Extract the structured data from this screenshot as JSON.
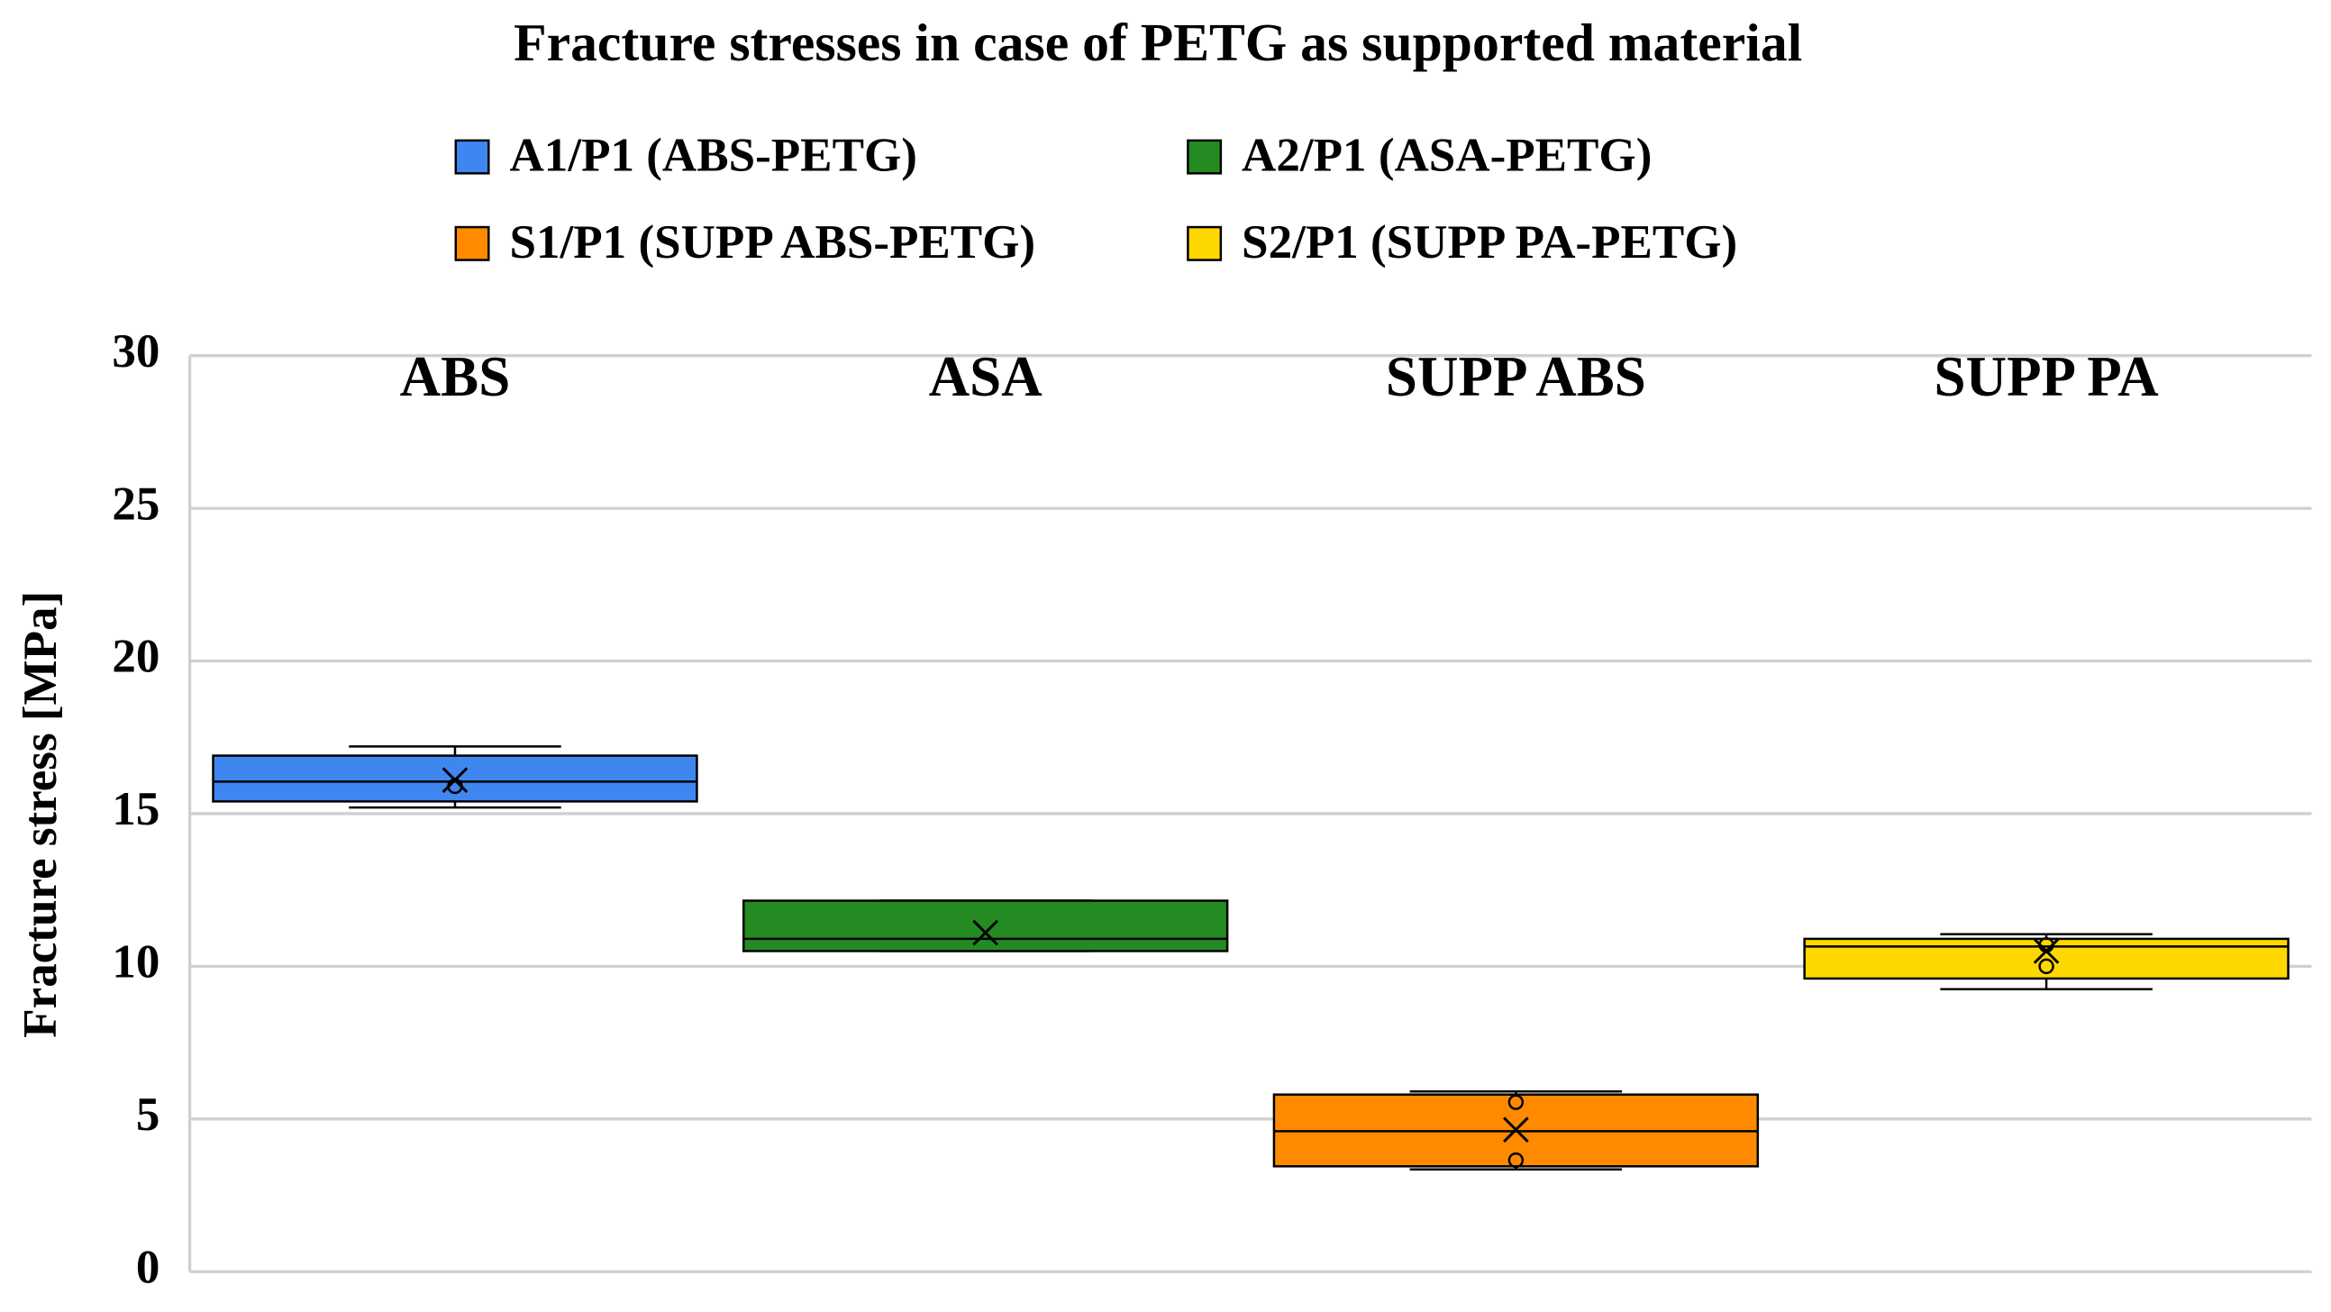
{
  "chart_data": {
    "type": "box",
    "title": "Fracture stresses in case of PETG as supported material",
    "y_label": "Fracture stress [MPa]",
    "categories": [
      "ABS",
      "ASA",
      "SUPP ABS",
      "SUPP PA"
    ],
    "ylim": [
      0,
      30
    ],
    "yticks": [
      0,
      5,
      10,
      15,
      20,
      25,
      30
    ],
    "grid": true,
    "series": [
      {
        "name": "A1/P1 (ABS-PETG)",
        "color": "#3f86f0",
        "min": 15.2,
        "q1": 15.4,
        "median": 16.05,
        "q3": 16.9,
        "max": 17.2,
        "mean": 16.1,
        "outliers": [
          15.9
        ]
      },
      {
        "name": "A2/P1 (ASA-PETG)",
        "color": "#238b22",
        "min": 10.5,
        "q1": 10.5,
        "median": 10.9,
        "q3": 12.15,
        "max": 12.15,
        "mean": 11.1,
        "outliers": []
      },
      {
        "name": "S1/P1 (SUPP ABS-PETG)",
        "color": "#ff8a00",
        "min": 3.35,
        "q1": 3.45,
        "median": 4.6,
        "q3": 5.8,
        "max": 5.9,
        "mean": 4.65,
        "outliers": [
          5.55,
          3.65
        ]
      },
      {
        "name": "S2/P1 (SUPP PA-PETG)",
        "color": "#ffd700",
        "min": 9.25,
        "q1": 9.6,
        "median": 10.65,
        "q3": 10.9,
        "max": 11.05,
        "mean": 10.5,
        "outliers": [
          10.7,
          10.0
        ]
      }
    ]
  }
}
